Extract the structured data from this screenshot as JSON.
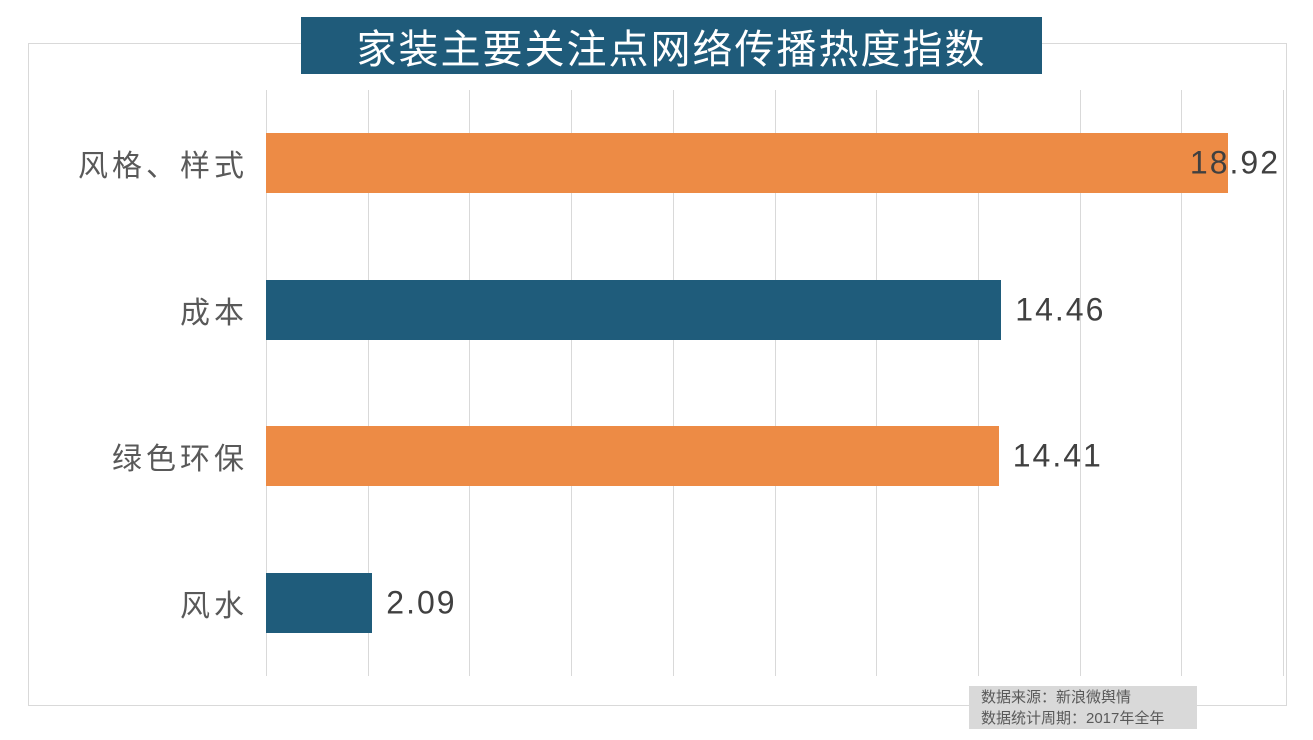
{
  "title": "家装主要关注点网络传播热度指数",
  "chart_data": {
    "type": "bar",
    "orientation": "horizontal",
    "title": "家装主要关注点网络传播热度指数",
    "categories": [
      "风格、样式",
      "成本",
      "绿色环保",
      "风水"
    ],
    "values": [
      18.92,
      14.46,
      14.41,
      2.09
    ],
    "value_labels": [
      "18.92",
      "14.46",
      "14.41",
      "2.09"
    ],
    "bar_colors": [
      "#ED8B45",
      "#1F5C7B",
      "#ED8B45",
      "#1F5C7B"
    ],
    "xlabel": "",
    "ylabel": "",
    "xlim": [
      0,
      20
    ],
    "gridline_step": 2,
    "grid": true,
    "legend": false
  },
  "colors": {
    "banner_bg": "#1F5B7A",
    "banner_text": "#FFFFFF",
    "orange": "#ED8B45",
    "teal": "#1F5C7B",
    "gridline": "#D9D9D9",
    "frame_border": "#D9D9D9",
    "category_text": "#595959",
    "value_text": "#404040",
    "footer_bg": "#D9D9D9",
    "footer_text": "#595959"
  },
  "footer": {
    "source_line": "数据来源：新浪微舆情",
    "period_line": "数据统计周期：2017年全年"
  }
}
